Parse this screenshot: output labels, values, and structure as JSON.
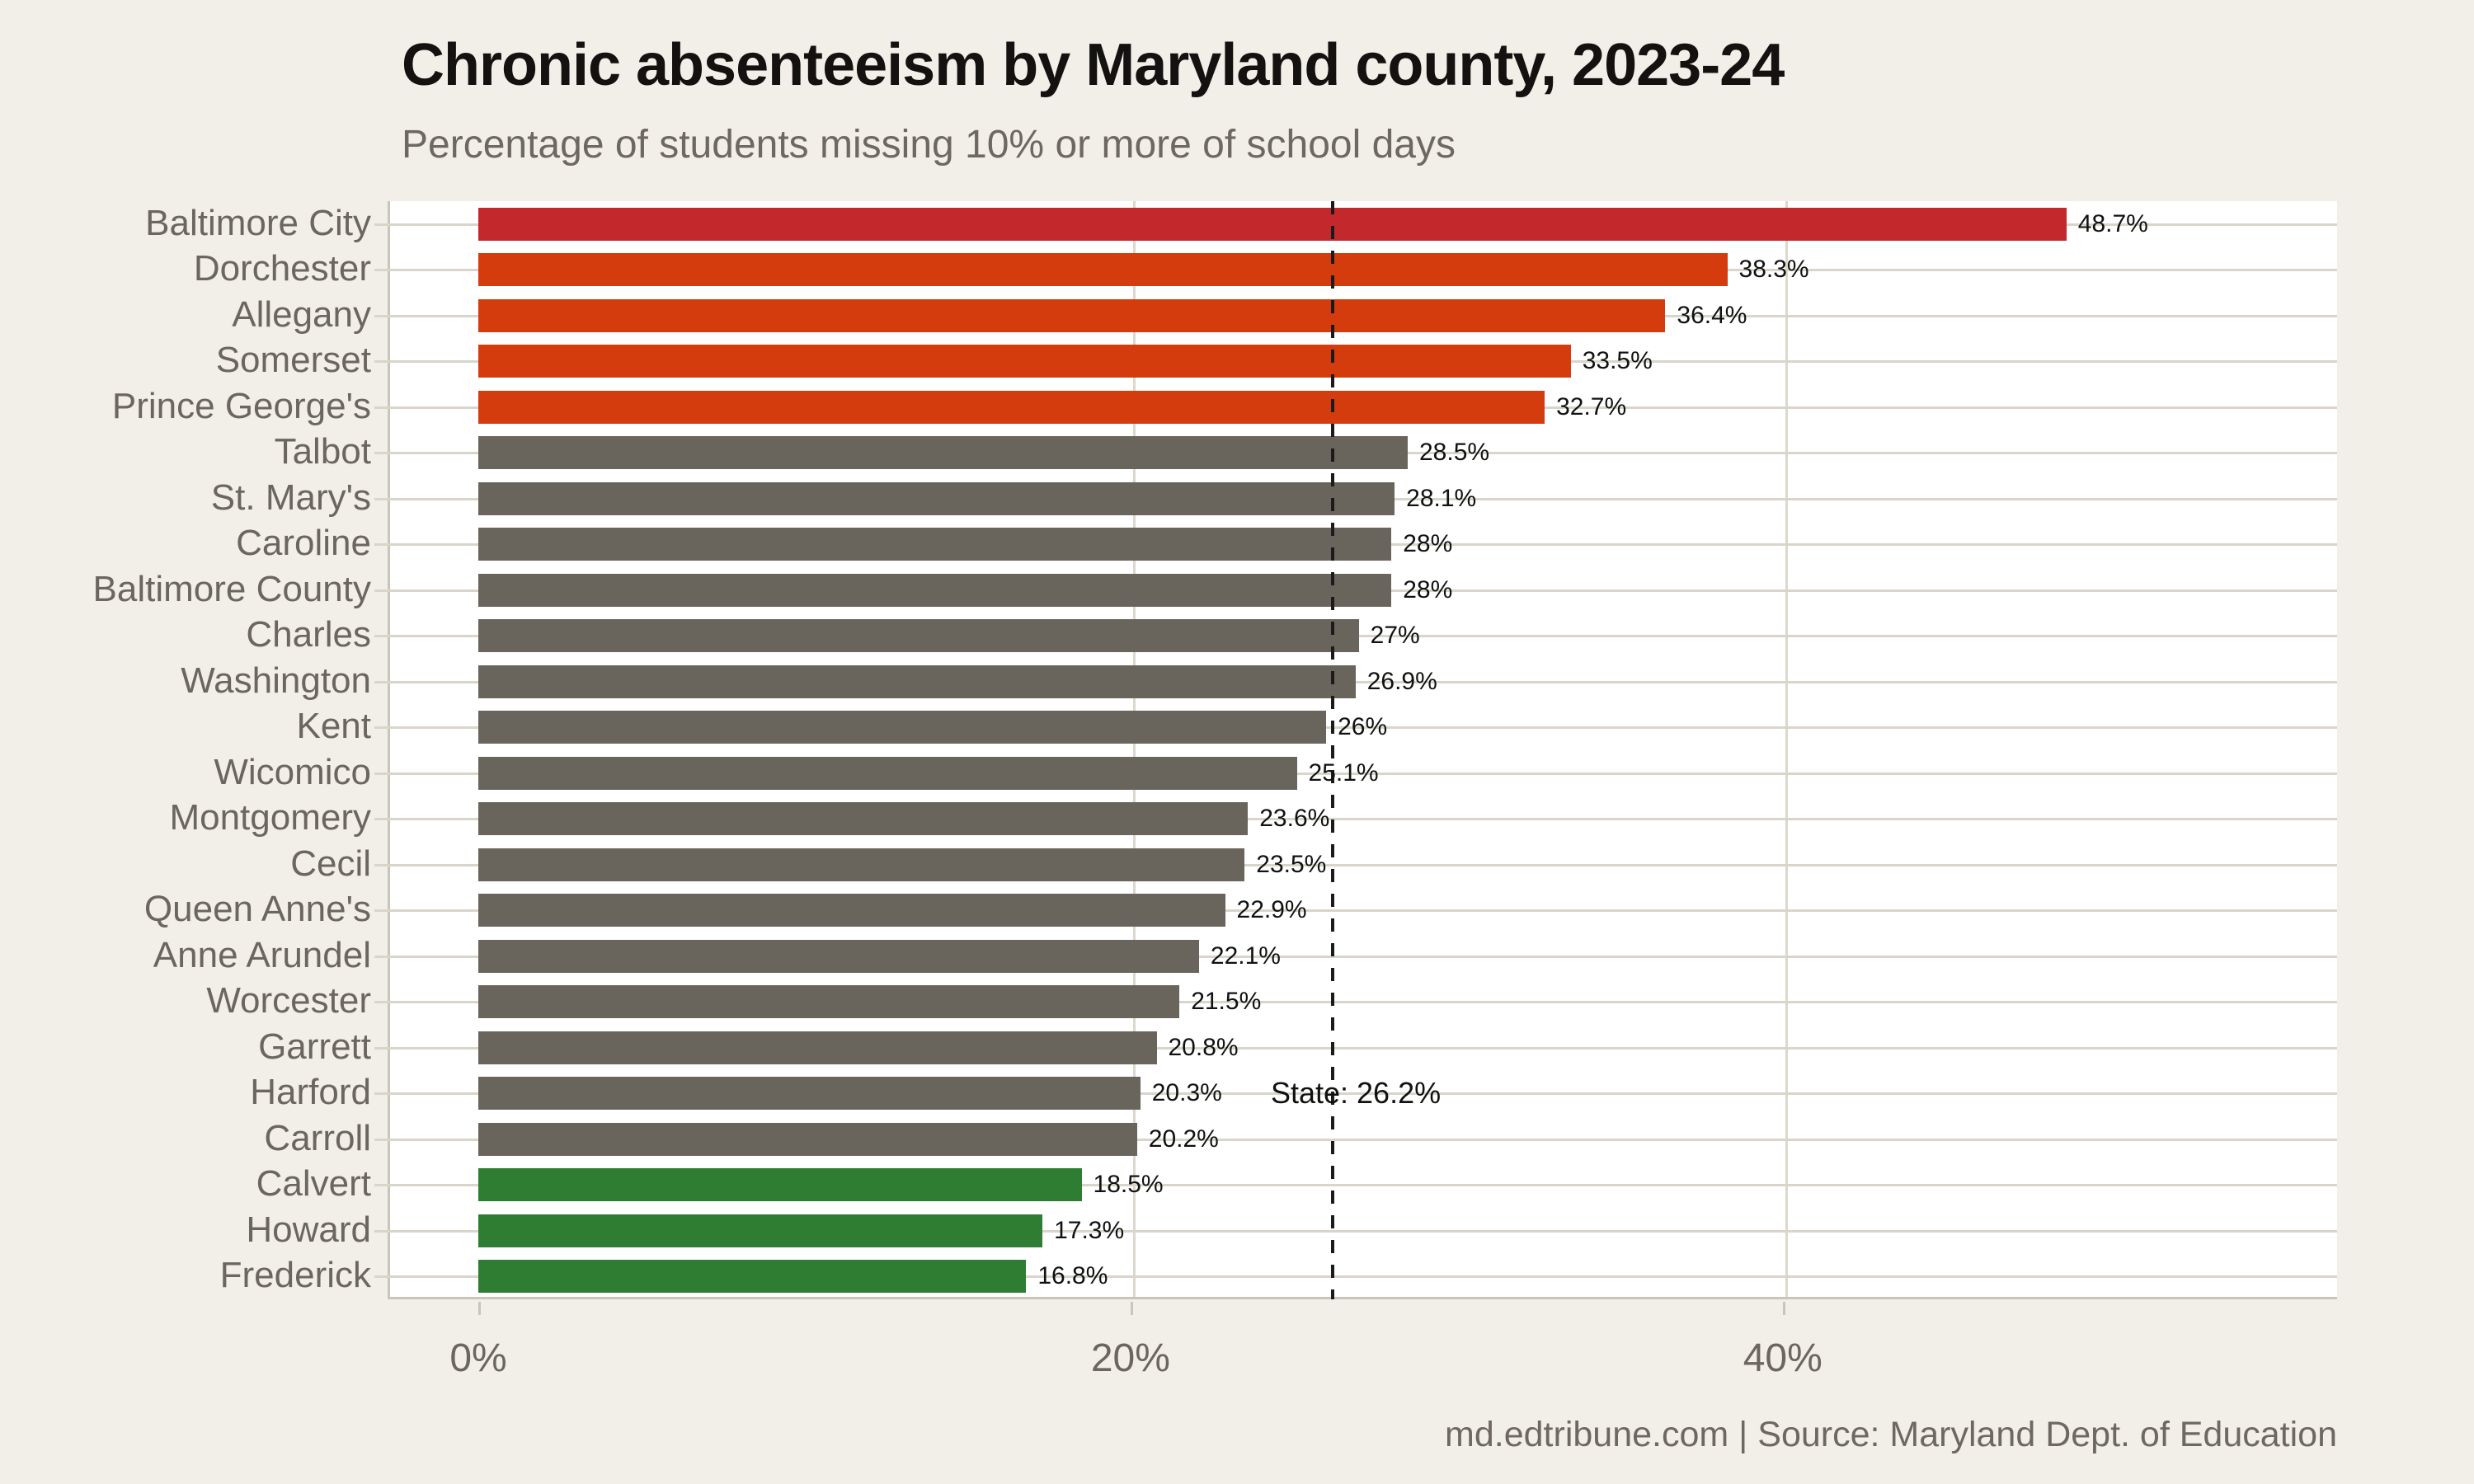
{
  "chart_data": {
    "type": "bar",
    "orientation": "horizontal",
    "title": "Chronic absenteeism by Maryland county, 2023-24",
    "subtitle": "Percentage of students missing 10% or more of school days",
    "footer": "md.edtribune.com | Source: Maryland Dept. of Education",
    "x_axis": {
      "ticks": [
        {
          "value": 0,
          "label": "0%"
        },
        {
          "value": 20,
          "label": "20%"
        },
        {
          "value": 40,
          "label": "40%"
        }
      ],
      "max": 57,
      "grid": true
    },
    "state_line": {
      "value": 26.2,
      "label": "State: 26.2%"
    },
    "colors": {
      "highest": "#c3292c",
      "high": "#d43c0e",
      "mid": "#6a655c",
      "low": "#2e7d33",
      "background": "#f2efe9",
      "plot_background": "#ffffff",
      "gridline": "#d9d5ca",
      "axis_line": "#c9c5ba",
      "label_text": "#6b675f",
      "title_text": "#141210",
      "value_text": "#111111"
    },
    "bars": [
      {
        "label": "Baltimore City",
        "value": 48.7,
        "display": "48.7%",
        "tier": "highest"
      },
      {
        "label": "Dorchester",
        "value": 38.3,
        "display": "38.3%",
        "tier": "high"
      },
      {
        "label": "Allegany",
        "value": 36.4,
        "display": "36.4%",
        "tier": "high"
      },
      {
        "label": "Somerset",
        "value": 33.5,
        "display": "33.5%",
        "tier": "high"
      },
      {
        "label": "Prince George's",
        "value": 32.7,
        "display": "32.7%",
        "tier": "high"
      },
      {
        "label": "Talbot",
        "value": 28.5,
        "display": "28.5%",
        "tier": "mid"
      },
      {
        "label": "St. Mary's",
        "value": 28.1,
        "display": "28.1%",
        "tier": "mid"
      },
      {
        "label": "Caroline",
        "value": 28,
        "display": "28%",
        "tier": "mid"
      },
      {
        "label": "Baltimore County",
        "value": 28,
        "display": "28%",
        "tier": "mid"
      },
      {
        "label": "Charles",
        "value": 27,
        "display": "27%",
        "tier": "mid"
      },
      {
        "label": "Washington",
        "value": 26.9,
        "display": "26.9%",
        "tier": "mid"
      },
      {
        "label": "Kent",
        "value": 26,
        "display": "26%",
        "tier": "mid"
      },
      {
        "label": "Wicomico",
        "value": 25.1,
        "display": "25.1%",
        "tier": "mid"
      },
      {
        "label": "Montgomery",
        "value": 23.6,
        "display": "23.6%",
        "tier": "mid"
      },
      {
        "label": "Cecil",
        "value": 23.5,
        "display": "23.5%",
        "tier": "mid"
      },
      {
        "label": "Queen Anne's",
        "value": 22.9,
        "display": "22.9%",
        "tier": "mid"
      },
      {
        "label": "Anne Arundel",
        "value": 22.1,
        "display": "22.1%",
        "tier": "mid"
      },
      {
        "label": "Worcester",
        "value": 21.5,
        "display": "21.5%",
        "tier": "mid"
      },
      {
        "label": "Garrett",
        "value": 20.8,
        "display": "20.8%",
        "tier": "mid"
      },
      {
        "label": "Harford",
        "value": 20.3,
        "display": "20.3%",
        "tier": "mid"
      },
      {
        "label": "Carroll",
        "value": 20.2,
        "display": "20.2%",
        "tier": "mid"
      },
      {
        "label": "Calvert",
        "value": 18.5,
        "display": "18.5%",
        "tier": "low"
      },
      {
        "label": "Howard",
        "value": 17.3,
        "display": "17.3%",
        "tier": "low"
      },
      {
        "label": "Frederick",
        "value": 16.8,
        "display": "16.8%",
        "tier": "low"
      }
    ]
  }
}
